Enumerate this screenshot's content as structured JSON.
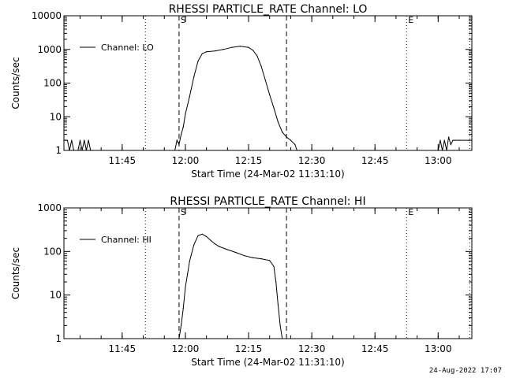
{
  "footer": {
    "timestamp": "24-Aug-2022 17:07"
  },
  "colors": {
    "background": "#ffffff",
    "foreground": "#000000"
  },
  "chart_data": [
    {
      "type": "line",
      "title": "RHESSI PARTICLE_RATE Channel: LO",
      "xlabel": "Start Time (24-Mar-02 11:31:10)",
      "ylabel": "Counts/sec",
      "yscale": "log",
      "ylim": [
        1,
        10000
      ],
      "xlim": [
        "11:31:10",
        "13:08:00"
      ],
      "x_ticks": [
        "11:45",
        "12:00",
        "12:15",
        "12:30",
        "12:45",
        "13:00"
      ],
      "y_ticks": [
        "1",
        "10",
        "100",
        "1000",
        "10000"
      ],
      "legend": {
        "position": "top-left"
      },
      "markers": [
        {
          "label": "S",
          "time": "11:58:30",
          "style": "dashed"
        },
        {
          "label": "",
          "time": "12:24:00",
          "style": "dashed"
        },
        {
          "label": "E",
          "time": "12:52:30",
          "style": "dotted"
        },
        {
          "label": "",
          "time": "11:50:30",
          "style": "dotted"
        },
        {
          "label": "",
          "time": "13:07:30",
          "style": "dotted"
        }
      ],
      "series": [
        {
          "name": "Channel: LO",
          "x": [
            "11:31:10",
            "11:32:00",
            "11:32:30",
            "11:33:00",
            "11:33:30",
            "11:34:30",
            "11:35:00",
            "11:35:30",
            "11:36:00",
            "11:36:30",
            "11:37:00",
            "11:37:30",
            "11:38:00",
            "11:57:30",
            "11:58:00",
            "11:58:30",
            "11:59:00",
            "11:59:30",
            "12:00:00",
            "12:01:00",
            "12:02:00",
            "12:03:00",
            "12:04:00",
            "12:05:00",
            "12:07:00",
            "12:09:00",
            "12:11:00",
            "12:13:00",
            "12:15:00",
            "12:16:00",
            "12:17:00",
            "12:18:00",
            "12:19:00",
            "12:20:00",
            "12:21:00",
            "12:22:00",
            "12:23:00",
            "12:24:00",
            "12:25:00",
            "12:26:00",
            "12:26:30",
            "12:27:00",
            "13:00:00",
            "13:00:30",
            "13:01:00",
            "13:01:30",
            "13:02:00",
            "13:02:30",
            "13:03:00",
            "13:03:30",
            "13:04:00",
            "13:05:00",
            "13:07:30"
          ],
          "y": [
            2,
            2,
            1,
            2,
            1,
            1,
            2,
            1,
            2,
            1,
            2,
            1,
            1,
            1,
            2,
            1.5,
            3,
            5,
            12,
            40,
            150,
            450,
            750,
            850,
            900,
            1000,
            1150,
            1250,
            1150,
            950,
            650,
            320,
            120,
            45,
            18,
            7,
            3.5,
            2.5,
            2,
            1.5,
            1,
            1,
            1,
            2,
            1,
            2,
            1,
            2.5,
            1.5,
            2,
            2,
            2,
            2
          ]
        }
      ]
    },
    {
      "type": "line",
      "title": "RHESSI PARTICLE_RATE Channel: HI",
      "xlabel": "Start Time (24-Mar-02 11:31:10)",
      "ylabel": "Counts/sec",
      "yscale": "log",
      "ylim": [
        1,
        1000
      ],
      "xlim": [
        "11:31:10",
        "13:08:00"
      ],
      "x_ticks": [
        "11:45",
        "12:00",
        "12:15",
        "12:30",
        "12:45",
        "13:00"
      ],
      "y_ticks": [
        "1",
        "10",
        "100",
        "1000"
      ],
      "legend": {
        "position": "top-left"
      },
      "markers": [
        {
          "label": "S",
          "time": "11:58:30",
          "style": "dashed"
        },
        {
          "label": "",
          "time": "12:24:00",
          "style": "dashed"
        },
        {
          "label": "E",
          "time": "12:52:30",
          "style": "dotted"
        },
        {
          "label": "",
          "time": "11:50:30",
          "style": "dotted"
        },
        {
          "label": "",
          "time": "13:07:30",
          "style": "dotted"
        }
      ],
      "series": [
        {
          "name": "Channel: HI",
          "x": [
            "11:58:30",
            "11:59:00",
            "11:59:30",
            "12:00:00",
            "12:00:30",
            "12:01:00",
            "12:02:00",
            "12:03:00",
            "12:04:00",
            "12:05:00",
            "12:06:00",
            "12:07:00",
            "12:08:00",
            "12:10:00",
            "12:12:00",
            "12:14:00",
            "12:16:00",
            "12:18:00",
            "12:20:00",
            "12:21:00",
            "12:21:30",
            "12:22:00",
            "12:22:30",
            "12:23:00"
          ],
          "y": [
            1,
            2,
            5,
            15,
            30,
            60,
            140,
            230,
            250,
            220,
            180,
            150,
            130,
            110,
            95,
            80,
            72,
            68,
            62,
            45,
            20,
            6,
            2,
            1
          ]
        }
      ]
    }
  ]
}
